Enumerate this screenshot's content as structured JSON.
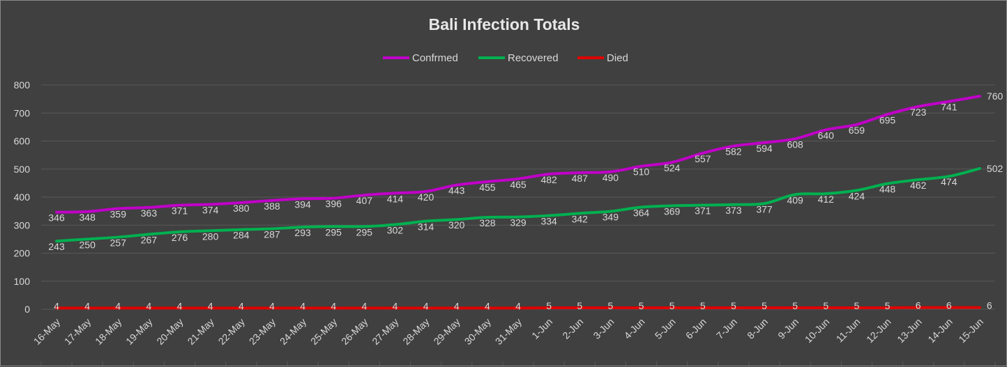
{
  "chart_data": {
    "type": "line",
    "title": "Bali Infection Totals",
    "categories": [
      "16-May",
      "17-May",
      "18-May",
      "19-May",
      "20-May",
      "21-May",
      "22-May",
      "23-May",
      "24-May",
      "25-May",
      "26-May",
      "27-May",
      "28-May",
      "29-May",
      "30-May",
      "31-May",
      "1-Jun",
      "2-Jun",
      "3-Jun",
      "4-Jun",
      "5-Jun",
      "6-Jun",
      "7-Jun",
      "8-Jun",
      "9-Jun",
      "10-Jun",
      "11-Jun",
      "12-Jun",
      "13-Jun",
      "14-Jun",
      "15-Jun"
    ],
    "series": [
      {
        "name": "Confrmed",
        "color": "#c000c8",
        "values": [
          346,
          348,
          359,
          363,
          371,
          374,
          380,
          388,
          394,
          396,
          407,
          414,
          420,
          443,
          455,
          465,
          482,
          487,
          490,
          510,
          524,
          557,
          582,
          594,
          608,
          640,
          659,
          695,
          723,
          741,
          760
        ]
      },
      {
        "name": "Recovered",
        "color": "#00b050",
        "values": [
          243,
          250,
          257,
          267,
          276,
          280,
          284,
          287,
          293,
          295,
          295,
          302,
          314,
          320,
          328,
          329,
          334,
          342,
          349,
          364,
          369,
          371,
          373,
          377,
          409,
          412,
          424,
          448,
          462,
          474,
          502
        ]
      },
      {
        "name": "Died",
        "color": "#e00000",
        "values": [
          4,
          4,
          4,
          4,
          4,
          4,
          4,
          4,
          4,
          4,
          4,
          4,
          4,
          4,
          4,
          4,
          5,
          5,
          5,
          5,
          5,
          5,
          5,
          5,
          5,
          5,
          5,
          5,
          6,
          6,
          6
        ]
      }
    ],
    "xlabel": "",
    "ylabel": "",
    "ylim": [
      0,
      800
    ],
    "yticks": [
      0,
      100,
      200,
      300,
      400,
      500,
      600,
      700,
      800
    ],
    "grid": true,
    "legend_position": "top-center",
    "data_labels": true,
    "background": "#404040",
    "gridline_color": "#595959"
  }
}
